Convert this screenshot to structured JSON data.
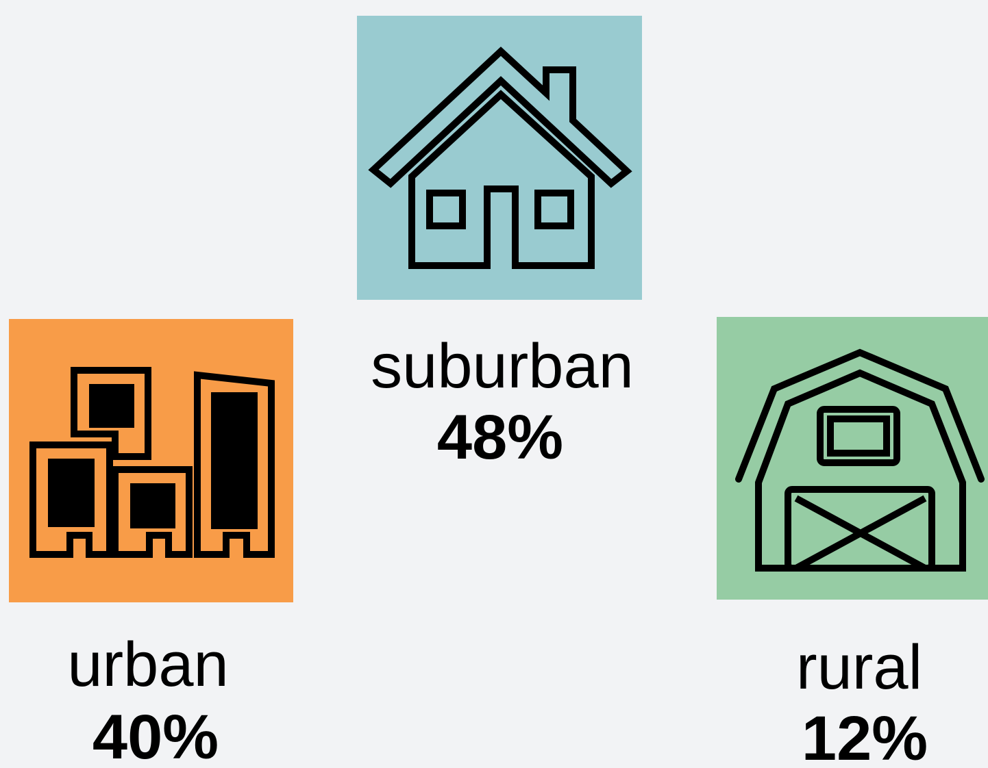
{
  "items": [
    {
      "label": "suburban",
      "value": "48%"
    },
    {
      "label": "urban",
      "value": "40%"
    },
    {
      "label": "rural",
      "value": "12%"
    }
  ]
}
